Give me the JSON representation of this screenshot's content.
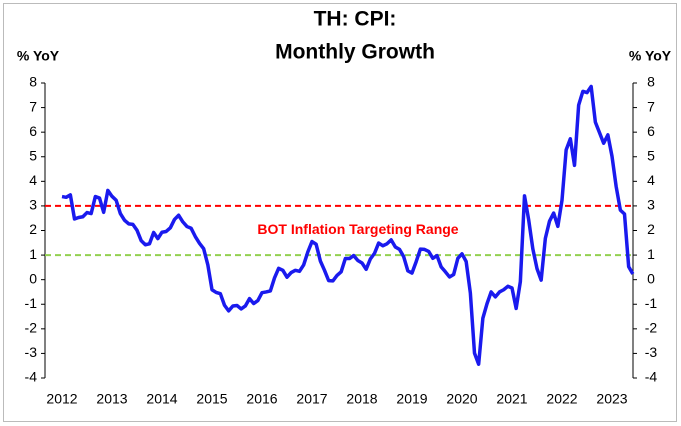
{
  "chart_data": {
    "type": "line",
    "title": [
      "TH: CPI:",
      "Monthly Growth"
    ],
    "y_label": "% YoY",
    "y2_label": "% YoY",
    "annotation": "BOT Inflation Targeting Range",
    "reference_lines": [
      {
        "value": 3,
        "color": "#ff0000"
      },
      {
        "value": 1,
        "color": "#92d050"
      }
    ],
    "xlim": [
      2011.66,
      2023.42
    ],
    "xticks": [
      2012,
      2013,
      2014,
      2015,
      2016,
      2017,
      2018,
      2019,
      2020,
      2021,
      2022,
      2023
    ],
    "ylim": [
      -4,
      8
    ],
    "yticks": [
      -4,
      -3,
      -2,
      -1,
      0,
      1,
      2,
      3,
      4,
      5,
      6,
      7,
      8
    ],
    "y2lim": [
      -4,
      8
    ],
    "y2ticks": [
      -4,
      -3,
      -2,
      -1,
      0,
      1,
      2,
      3,
      4,
      5,
      6,
      7,
      8
    ],
    "x": [
      2012.0,
      2012.083,
      2012.167,
      2012.25,
      2012.333,
      2012.417,
      2012.5,
      2012.583,
      2012.667,
      2012.75,
      2012.833,
      2012.917,
      2013.0,
      2013.083,
      2013.167,
      2013.25,
      2013.333,
      2013.417,
      2013.5,
      2013.583,
      2013.667,
      2013.75,
      2013.833,
      2013.917,
      2014.0,
      2014.083,
      2014.167,
      2014.25,
      2014.333,
      2014.417,
      2014.5,
      2014.583,
      2014.667,
      2014.75,
      2014.833,
      2014.917,
      2015.0,
      2015.083,
      2015.167,
      2015.25,
      2015.333,
      2015.417,
      2015.5,
      2015.583,
      2015.667,
      2015.75,
      2015.833,
      2015.917,
      2016.0,
      2016.083,
      2016.167,
      2016.25,
      2016.333,
      2016.417,
      2016.5,
      2016.583,
      2016.667,
      2016.75,
      2016.833,
      2016.917,
      2017.0,
      2017.083,
      2017.167,
      2017.25,
      2017.333,
      2017.417,
      2017.5,
      2017.583,
      2017.667,
      2017.75,
      2017.833,
      2017.917,
      2018.0,
      2018.083,
      2018.167,
      2018.25,
      2018.333,
      2018.417,
      2018.5,
      2018.583,
      2018.667,
      2018.75,
      2018.833,
      2018.917,
      2019.0,
      2019.083,
      2019.167,
      2019.25,
      2019.333,
      2019.417,
      2019.5,
      2019.583,
      2019.667,
      2019.75,
      2019.833,
      2019.917,
      2020.0,
      2020.083,
      2020.167,
      2020.25,
      2020.333,
      2020.417,
      2020.5,
      2020.583,
      2020.667,
      2020.75,
      2020.833,
      2020.917,
      2021.0,
      2021.083,
      2021.167,
      2021.25,
      2021.333,
      2021.417,
      2021.5,
      2021.583,
      2021.667,
      2021.75,
      2021.833,
      2021.917,
      2022.0,
      2022.083,
      2022.167,
      2022.25,
      2022.333,
      2022.417,
      2022.5,
      2022.583,
      2022.667,
      2022.75,
      2022.833,
      2022.917,
      2023.0,
      2023.083,
      2023.167,
      2023.25,
      2023.333,
      2023.417
    ],
    "series": [
      {
        "name": "CPI",
        "color": "#1a1aee",
        "values": [
          3.38,
          3.35,
          3.45,
          2.47,
          2.53,
          2.56,
          2.73,
          2.69,
          3.38,
          3.32,
          2.74,
          3.63,
          3.39,
          3.23,
          2.69,
          2.42,
          2.27,
          2.25,
          2.01,
          1.59,
          1.42,
          1.46,
          1.92,
          1.67,
          1.93,
          1.96,
          2.11,
          2.45,
          2.62,
          2.35,
          2.16,
          2.09,
          1.75,
          1.48,
          1.26,
          0.6,
          -0.41,
          -0.52,
          -0.57,
          -1.04,
          -1.27,
          -1.07,
          -1.05,
          -1.19,
          -1.07,
          -0.77,
          -0.97,
          -0.85,
          -0.53,
          -0.5,
          -0.46,
          0.07,
          0.46,
          0.38,
          0.1,
          0.29,
          0.38,
          0.34,
          0.6,
          1.13,
          1.55,
          1.44,
          0.76,
          0.38,
          -0.04,
          -0.05,
          0.17,
          0.32,
          0.86,
          0.86,
          0.98,
          0.78,
          0.68,
          0.42,
          0.84,
          1.07,
          1.49,
          1.38,
          1.46,
          1.62,
          1.33,
          1.23,
          0.94,
          0.36,
          0.27,
          0.73,
          1.24,
          1.23,
          1.15,
          0.87,
          0.98,
          0.52,
          0.32,
          0.11,
          0.21,
          0.87,
          1.05,
          0.74,
          -0.54,
          -2.99,
          -3.44,
          -1.57,
          -0.98,
          -0.5,
          -0.7,
          -0.5,
          -0.41,
          -0.27,
          -0.34,
          -1.17,
          -0.08,
          3.41,
          2.44,
          1.25,
          0.45,
          -0.02,
          1.68,
          2.38,
          2.71,
          2.17,
          3.23,
          5.28,
          5.73,
          4.65,
          7.1,
          7.66,
          7.61,
          7.86,
          6.41,
          5.98,
          5.55,
          5.89,
          5.02,
          3.79,
          2.83,
          2.67,
          0.53,
          0.23
        ]
      }
    ]
  }
}
